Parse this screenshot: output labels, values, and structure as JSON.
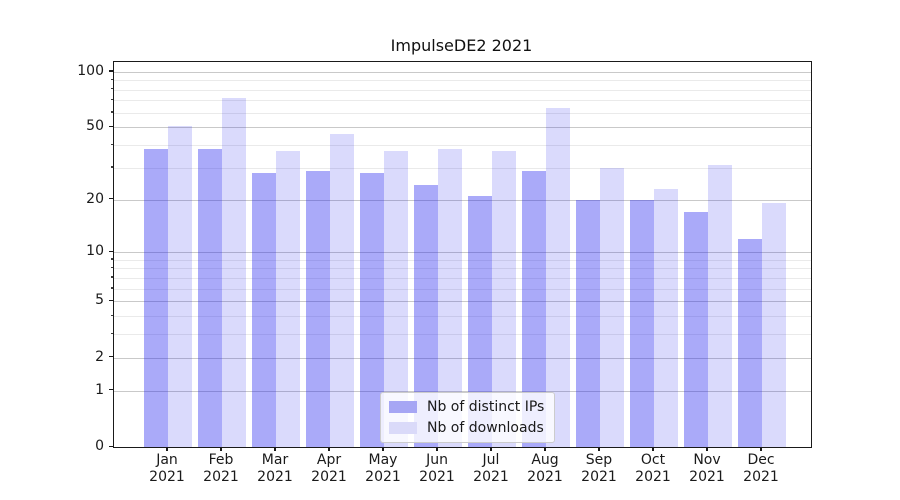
{
  "title": "ImpulseDE2 2021",
  "chart_data": {
    "type": "bar",
    "title": "ImpulseDE2 2021",
    "categories": [
      "Jan 2021",
      "Feb 2021",
      "Mar 2021",
      "Apr 2021",
      "May 2021",
      "Jun 2021",
      "Jul 2021",
      "Aug 2021",
      "Sep 2021",
      "Oct 2021",
      "Nov 2021",
      "Dec 2021"
    ],
    "month_labels": [
      "Jan",
      "Feb",
      "Mar",
      "Apr",
      "May",
      "Jun",
      "Jul",
      "Aug",
      "Sep",
      "Oct",
      "Nov",
      "Dec"
    ],
    "year": "2021",
    "series": [
      {
        "name": "Nb of distinct IPs",
        "values": [
          38,
          38,
          28,
          29,
          28,
          24,
          21,
          29,
          20,
          20,
          17,
          12
        ],
        "color": "rgba(25,25,238,0.37)",
        "legend_color": "#a6a6f4"
      },
      {
        "name": "Nb of downloads",
        "values": [
          51,
          72,
          37,
          46,
          37,
          38,
          37,
          64,
          30,
          23,
          31,
          19
        ],
        "color": "rgba(25,25,238,0.16)",
        "legend_color": "#dadaf9"
      }
    ],
    "xlabel": "",
    "ylabel": "",
    "y_axis": {
      "scale": "log1p",
      "tick_labels": [
        "100",
        "50",
        "20",
        "10",
        "5",
        "2",
        "1",
        "0"
      ],
      "tick_values": [
        100,
        50,
        20,
        10,
        5,
        2,
        1,
        0
      ],
      "minor_values": [
        3,
        4,
        6,
        7,
        8,
        9,
        30,
        40,
        60,
        70,
        80,
        90
      ],
      "max": 113,
      "min": 0
    },
    "grid": true,
    "legend_position": "lower center"
  },
  "colors": {
    "major_grid": "#c9c9c9",
    "minor_grid": "#eaeaea",
    "spine": "#1a1a1a",
    "background": "#ffffff"
  }
}
